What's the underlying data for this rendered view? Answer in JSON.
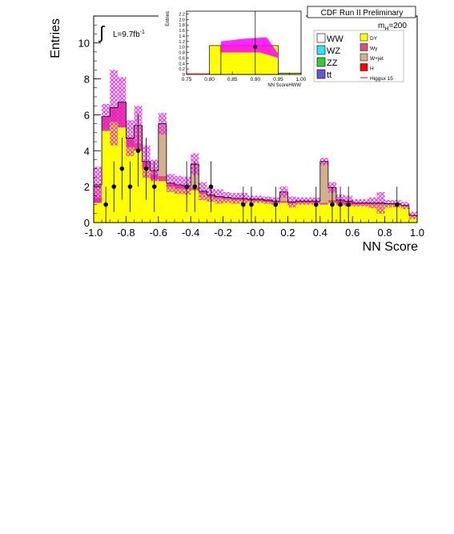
{
  "chart_data": {
    "type": "bar",
    "title": "CDF Run II Preliminary",
    "xlabel": "NN Score",
    "ylabel": "Entries",
    "xlim": [
      -1.0,
      1.0
    ],
    "ylim": [
      0,
      11.5
    ],
    "xticks": [
      "-1.0",
      "-0.8",
      "-0.6",
      "-0.4",
      "-0.2",
      "-0.0",
      "0.2",
      "0.4",
      "0.6",
      "0.8",
      "1.0"
    ],
    "yticks": [
      "0",
      "2",
      "4",
      "6",
      "8",
      "10"
    ],
    "bin_width": 0.05,
    "luminosity": "L=9.7fb",
    "luminosity_sup": "-1",
    "mass_label": "m",
    "mass_sub": "H",
    "mass_value": "=200",
    "legend": [
      {
        "name": "WW",
        "color": "#ffffff"
      },
      {
        "name": "WZ",
        "color": "#33e0ff"
      },
      {
        "name": "ZZ",
        "color": "#33cc33"
      },
      {
        "name": "tt",
        "color": "#6655dd"
      },
      {
        "name": "DY",
        "color": "#ffff00"
      },
      {
        "name": "Wγ",
        "color": "#d9507a"
      },
      {
        "name": "W+jet",
        "color": "#d2b08c"
      },
      {
        "name": "H",
        "color": "#ff0000"
      },
      {
        "name": "Higgsx 15",
        "color": "#ff0000"
      }
    ],
    "series": [
      {
        "name": "DY",
        "color": "#ffff00",
        "values": [
          1.1,
          5.1,
          5.6,
          5.3,
          4.2,
          4.0,
          3.0,
          2.4,
          2.3,
          2.0,
          1.9,
          1.85,
          1.8,
          1.6,
          1.4,
          1.35,
          1.3,
          1.25,
          1.25,
          1.2,
          1.2,
          1.15,
          1.1,
          1.1,
          1.05,
          1.1,
          1.1,
          1.1,
          1.0,
          1.1,
          1.05,
          1.0,
          1.0,
          1.0,
          1.0,
          1.0,
          1.0,
          1.0,
          0.9,
          0.35
        ]
      },
      {
        "name": "Wγ",
        "color": "#d9507a",
        "values": [
          0.3,
          0.8,
          0.8,
          1.4,
          0.5,
          0.4,
          0.4,
          0.3,
          0.3,
          0.2,
          0.2,
          0.2,
          0.15,
          0.15,
          0.15,
          0.1,
          0.1,
          0.1,
          0.1,
          0.1,
          0.1,
          0.1,
          0.1,
          0.1,
          0.1,
          0.1,
          0.1,
          0.1,
          0.1,
          0.15,
          0.2,
          0.2,
          0.1,
          0.1,
          0.1,
          0.1,
          0.05,
          0.05,
          0.05,
          0.05
        ]
      },
      {
        "name": "W+jet",
        "color": "#d2b08c",
        "values": [
          0.7,
          0.0,
          0.0,
          0.0,
          0.0,
          1.0,
          0.0,
          0.2,
          2.9,
          0.0,
          0.0,
          0.0,
          1.3,
          0.0,
          0.0,
          0.0,
          0.0,
          0.0,
          0.0,
          0.0,
          0.0,
          0.0,
          0.0,
          0.5,
          0.0,
          0.0,
          0.0,
          0.0,
          2.3,
          0.7,
          0.0,
          0.0,
          0.0,
          0.0,
          0.0,
          0.0,
          0.0,
          0.0,
          0.0,
          0.0
        ]
      },
      {
        "name": "Uncertainty",
        "color": "#ff00ff",
        "values": [
          1.0,
          0.7,
          2.1,
          1.4,
          1.0,
          1.1,
          0.9,
          0.6,
          0.6,
          0.5,
          0.5,
          0.5,
          0.6,
          0.5,
          0.4,
          0.4,
          0.3,
          0.3,
          0.3,
          0.2,
          0.2,
          0.2,
          0.2,
          0.3,
          0.3,
          0.2,
          0.2,
          0.2,
          0.2,
          0.3,
          0.3,
          0.3,
          0.2,
          0.2,
          0.3,
          0.6,
          0.2,
          0.2,
          0.2,
          0.2
        ]
      },
      {
        "name": "Data",
        "type": "points",
        "x": [
          -0.925,
          -0.875,
          -0.825,
          -0.775,
          -0.725,
          -0.675,
          -0.625,
          -0.425,
          -0.375,
          -0.275,
          -0.075,
          -0.025,
          0.125,
          0.375,
          0.475,
          0.525,
          0.575,
          0.875
        ],
        "values": [
          1,
          2,
          3,
          2,
          4,
          3,
          2,
          2,
          2,
          2,
          1,
          1,
          1,
          1,
          1,
          1,
          1,
          1
        ]
      }
    ],
    "inset": {
      "title": "NN ScoreHWW",
      "ylabel": "Entries",
      "xlim": [
        0.75,
        1.0
      ],
      "ylim": [
        0,
        2.3
      ],
      "xticks": [
        "0.75",
        "0.80",
        "0.85",
        "0.90",
        "0.95",
        "1.00"
      ],
      "yticks": [
        "0",
        "0.2",
        "0.4",
        "0.6",
        "0.8",
        "1.0",
        "1.2",
        "1.4",
        "1.6",
        "1.8",
        "2.0",
        "2.2"
      ],
      "bins": [
        0.75,
        0.8,
        0.825,
        0.95,
        0.975,
        1.0
      ],
      "values": [
        0.0,
        1.05,
        1.05,
        0.05,
        0.05
      ],
      "band_low": [
        0.0,
        0.0,
        0.8,
        0.0,
        0.0
      ],
      "band_high": [
        0.0,
        0.0,
        1.3,
        0.0,
        0.0
      ],
      "data_point": {
        "x": 0.9,
        "y": 1.0
      }
    }
  }
}
